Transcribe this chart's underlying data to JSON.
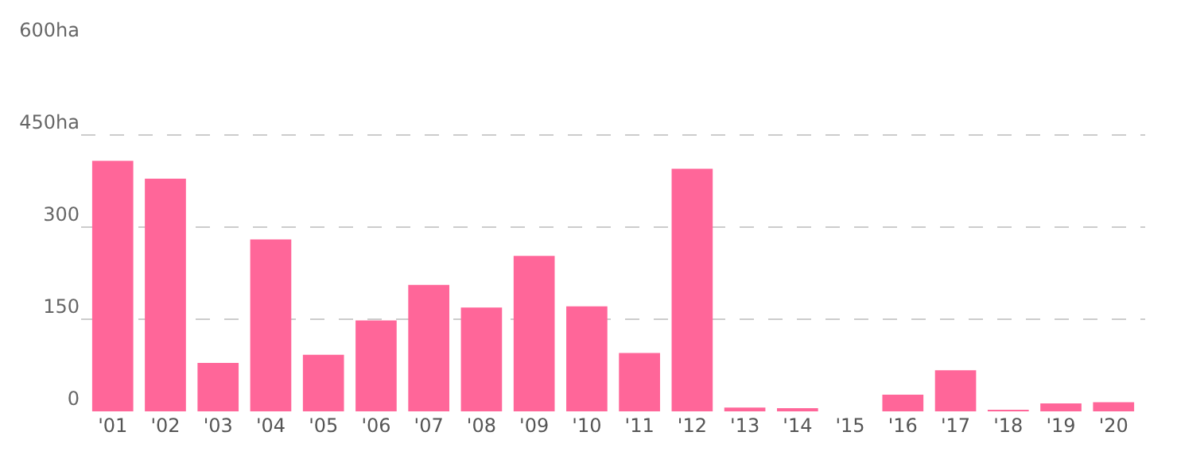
{
  "chart_data": {
    "type": "bar",
    "categories": [
      "'01",
      "'02",
      "'03",
      "'04",
      "'05",
      "'06",
      "'07",
      "'08",
      "'09",
      "'10",
      "'11",
      "'12",
      "'13",
      "'14",
      "'15",
      "'16",
      "'17",
      "'18",
      "'19",
      "'20"
    ],
    "values": [
      408,
      379,
      79,
      280,
      92,
      148,
      206,
      169,
      253,
      171,
      95,
      395,
      6,
      3,
      0,
      27,
      67,
      1,
      13,
      15
    ],
    "color": "#ff6699",
    "ylim": [
      0,
      600
    ],
    "yticks": [
      0,
      150,
      300,
      {
        "value": 450,
        "label": "450ha"
      },
      {
        "value": 600,
        "label": "600ha"
      }
    ],
    "grid": "y",
    "line_style": "dashed"
  }
}
